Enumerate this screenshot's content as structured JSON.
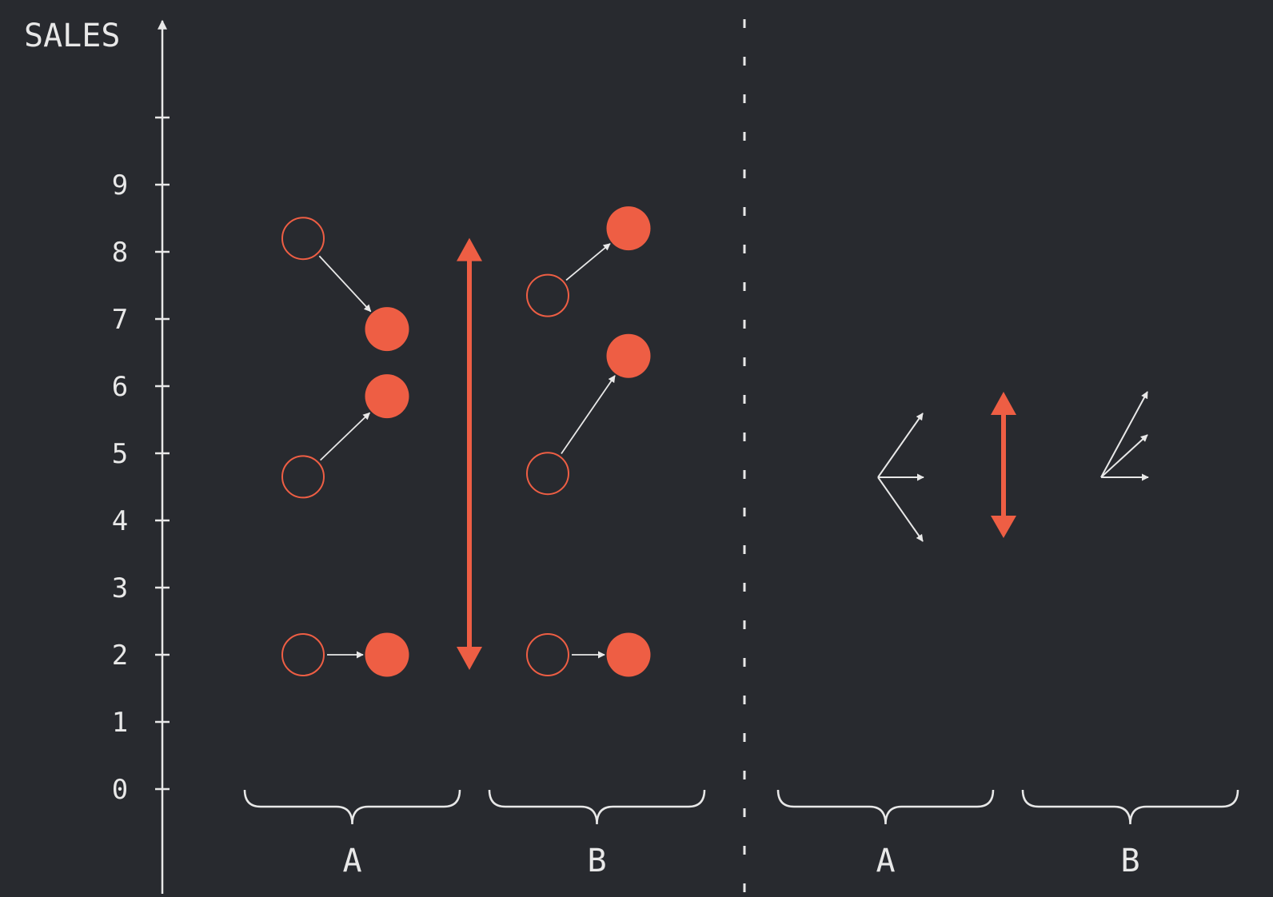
{
  "y_axis": {
    "label": "SALES",
    "ticks": [
      "0",
      "1",
      "2",
      "3",
      "4",
      "5",
      "6",
      "7",
      "8",
      "9",
      ""
    ]
  },
  "left_panel": {
    "groups": [
      {
        "label": "A",
        "pairs": [
          {
            "before": 8.2,
            "after": 6.85
          },
          {
            "before": 4.65,
            "after": 5.85
          },
          {
            "before": 2.0,
            "after": 2.0
          }
        ]
      },
      {
        "label": "B",
        "pairs": [
          {
            "before": 7.35,
            "after": 8.35
          },
          {
            "before": 4.7,
            "after": 6.45
          },
          {
            "before": 2.0,
            "after": 2.0
          }
        ]
      }
    ],
    "range_arrow": {
      "from": 2.0,
      "to": 8.35
    }
  },
  "right_panel": {
    "groups": [
      {
        "label": "A"
      },
      {
        "label": "B"
      }
    ]
  },
  "colors": {
    "background": "#282a2f",
    "accent": "#ee5e44",
    "line": "#e8e8e8"
  }
}
